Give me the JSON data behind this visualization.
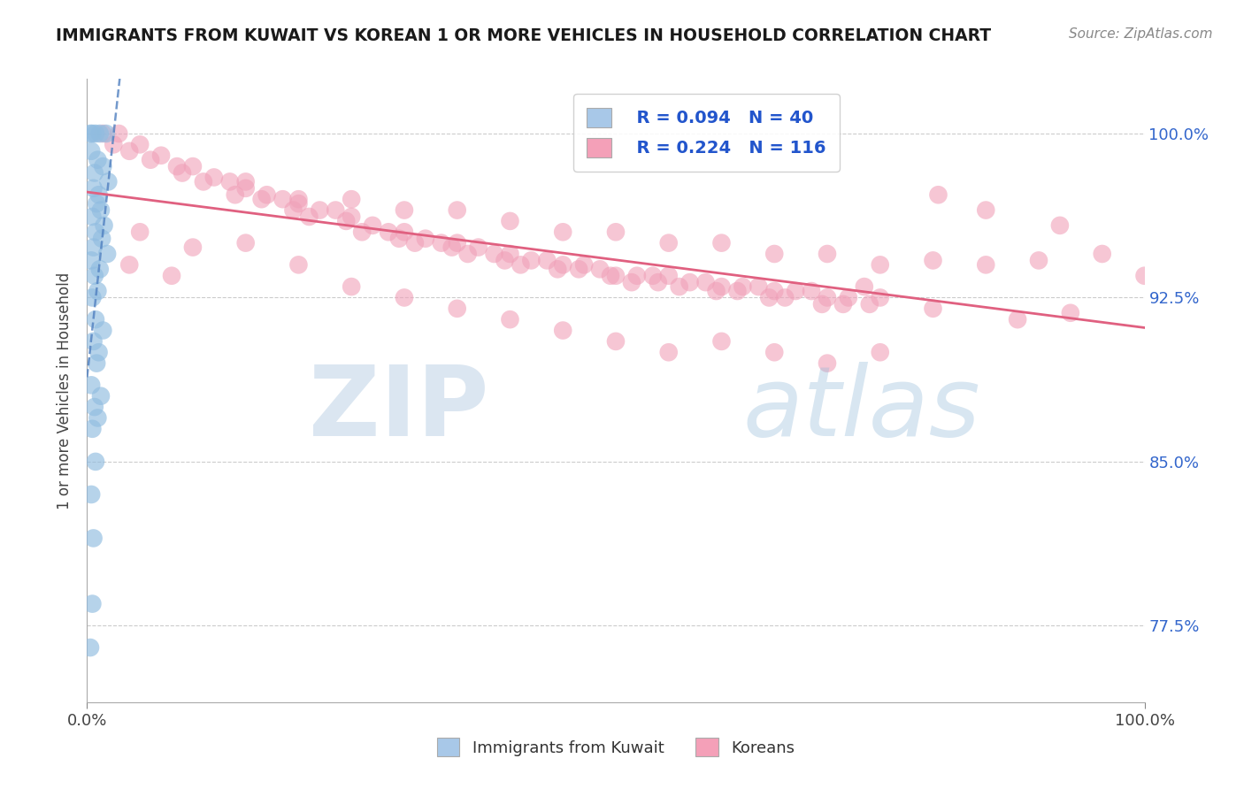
{
  "title": "IMMIGRANTS FROM KUWAIT VS KOREAN 1 OR MORE VEHICLES IN HOUSEHOLD CORRELATION CHART",
  "source_text": "Source: ZipAtlas.com",
  "ylabel": "1 or more Vehicles in Household",
  "xlim": [
    0.0,
    100.0
  ],
  "ylim": [
    74.0,
    102.5
  ],
  "yticks": [
    77.5,
    85.0,
    92.5,
    100.0
  ],
  "xticklabels": [
    "0.0%",
    "100.0%"
  ],
  "yticklabels_right": [
    "77.5%",
    "85.0%",
    "92.5%",
    "100.0%"
  ],
  "legend_entries": [
    {
      "label": "Immigrants from Kuwait",
      "color": "#a8c8e8",
      "R": 0.094,
      "N": 40
    },
    {
      "label": "Koreans",
      "color": "#f4a0b8",
      "R": 0.224,
      "N": 116
    }
  ],
  "watermark_zip": "ZIP",
  "watermark_atlas": "atlas",
  "watermark_color": "#c0d8f0",
  "kuwait_color": "#90bce0",
  "korean_color": "#f0a0b8",
  "kuwait_line_color": "#5080c0",
  "korean_line_color": "#e06080",
  "background_color": "#ffffff",
  "kuwait_points": [
    [
      0.3,
      100.0
    ],
    [
      0.8,
      100.0
    ],
    [
      1.2,
      100.0
    ],
    [
      1.8,
      100.0
    ],
    [
      0.5,
      100.0
    ],
    [
      0.4,
      99.2
    ],
    [
      1.0,
      98.8
    ],
    [
      1.5,
      98.5
    ],
    [
      0.7,
      98.2
    ],
    [
      2.0,
      97.8
    ],
    [
      0.6,
      97.5
    ],
    [
      1.1,
      97.2
    ],
    [
      0.9,
      96.8
    ],
    [
      1.3,
      96.5
    ],
    [
      0.5,
      96.2
    ],
    [
      1.6,
      95.8
    ],
    [
      0.8,
      95.5
    ],
    [
      1.4,
      95.2
    ],
    [
      0.6,
      94.8
    ],
    [
      1.9,
      94.5
    ],
    [
      0.4,
      94.2
    ],
    [
      1.2,
      93.8
    ],
    [
      0.7,
      93.5
    ],
    [
      1.0,
      92.8
    ],
    [
      0.5,
      92.5
    ],
    [
      0.8,
      91.5
    ],
    [
      1.5,
      91.0
    ],
    [
      0.6,
      90.5
    ],
    [
      1.1,
      90.0
    ],
    [
      0.9,
      89.5
    ],
    [
      0.4,
      88.5
    ],
    [
      1.3,
      88.0
    ],
    [
      0.7,
      87.5
    ],
    [
      1.0,
      87.0
    ],
    [
      0.5,
      86.5
    ],
    [
      0.8,
      85.0
    ],
    [
      0.4,
      83.5
    ],
    [
      0.6,
      81.5
    ],
    [
      0.5,
      78.5
    ],
    [
      0.3,
      76.5
    ]
  ],
  "korean_points": [
    [
      1.5,
      100.0
    ],
    [
      3.0,
      100.0
    ],
    [
      2.5,
      99.5
    ],
    [
      5.0,
      99.5
    ],
    [
      4.0,
      99.2
    ],
    [
      7.0,
      99.0
    ],
    [
      6.0,
      98.8
    ],
    [
      8.5,
      98.5
    ],
    [
      10.0,
      98.5
    ],
    [
      9.0,
      98.2
    ],
    [
      12.0,
      98.0
    ],
    [
      11.0,
      97.8
    ],
    [
      13.5,
      97.8
    ],
    [
      15.0,
      97.5
    ],
    [
      14.0,
      97.2
    ],
    [
      17.0,
      97.2
    ],
    [
      16.5,
      97.0
    ],
    [
      18.5,
      97.0
    ],
    [
      20.0,
      96.8
    ],
    [
      19.5,
      96.5
    ],
    [
      22.0,
      96.5
    ],
    [
      21.0,
      96.2
    ],
    [
      23.5,
      96.5
    ],
    [
      25.0,
      96.2
    ],
    [
      24.5,
      96.0
    ],
    [
      27.0,
      95.8
    ],
    [
      26.0,
      95.5
    ],
    [
      28.5,
      95.5
    ],
    [
      30.0,
      95.5
    ],
    [
      29.5,
      95.2
    ],
    [
      32.0,
      95.2
    ],
    [
      31.0,
      95.0
    ],
    [
      33.5,
      95.0
    ],
    [
      35.0,
      95.0
    ],
    [
      34.5,
      94.8
    ],
    [
      37.0,
      94.8
    ],
    [
      36.0,
      94.5
    ],
    [
      38.5,
      94.5
    ],
    [
      40.0,
      94.5
    ],
    [
      39.5,
      94.2
    ],
    [
      42.0,
      94.2
    ],
    [
      41.0,
      94.0
    ],
    [
      43.5,
      94.2
    ],
    [
      45.0,
      94.0
    ],
    [
      44.5,
      93.8
    ],
    [
      47.0,
      94.0
    ],
    [
      46.5,
      93.8
    ],
    [
      48.5,
      93.8
    ],
    [
      50.0,
      93.5
    ],
    [
      49.5,
      93.5
    ],
    [
      52.0,
      93.5
    ],
    [
      51.5,
      93.2
    ],
    [
      53.5,
      93.5
    ],
    [
      55.0,
      93.5
    ],
    [
      54.0,
      93.2
    ],
    [
      57.0,
      93.2
    ],
    [
      56.0,
      93.0
    ],
    [
      58.5,
      93.2
    ],
    [
      60.0,
      93.0
    ],
    [
      59.5,
      92.8
    ],
    [
      62.0,
      93.0
    ],
    [
      61.5,
      92.8
    ],
    [
      63.5,
      93.0
    ],
    [
      65.0,
      92.8
    ],
    [
      64.5,
      92.5
    ],
    [
      67.0,
      92.8
    ],
    [
      66.0,
      92.5
    ],
    [
      68.5,
      92.8
    ],
    [
      70.0,
      92.5
    ],
    [
      69.5,
      92.2
    ],
    [
      72.0,
      92.5
    ],
    [
      71.5,
      92.2
    ],
    [
      73.5,
      93.0
    ],
    [
      75.0,
      92.5
    ],
    [
      74.0,
      92.2
    ],
    [
      15.0,
      97.8
    ],
    [
      20.0,
      97.0
    ],
    [
      25.0,
      97.0
    ],
    [
      30.0,
      96.5
    ],
    [
      35.0,
      96.5
    ],
    [
      40.0,
      96.0
    ],
    [
      45.0,
      95.5
    ],
    [
      50.0,
      95.5
    ],
    [
      55.0,
      95.0
    ],
    [
      60.0,
      95.0
    ],
    [
      65.0,
      94.5
    ],
    [
      70.0,
      94.5
    ],
    [
      75.0,
      94.0
    ],
    [
      80.0,
      94.2
    ],
    [
      85.0,
      94.0
    ],
    [
      90.0,
      94.2
    ],
    [
      100.0,
      93.5
    ],
    [
      80.5,
      97.2
    ],
    [
      85.0,
      96.5
    ],
    [
      92.0,
      95.8
    ],
    [
      88.0,
      91.5
    ],
    [
      93.0,
      91.8
    ],
    [
      96.0,
      94.5
    ],
    [
      5.0,
      95.5
    ],
    [
      10.0,
      94.8
    ],
    [
      15.0,
      95.0
    ],
    [
      20.0,
      94.0
    ],
    [
      25.0,
      93.0
    ],
    [
      30.0,
      92.5
    ],
    [
      35.0,
      92.0
    ],
    [
      40.0,
      91.5
    ],
    [
      45.0,
      91.0
    ],
    [
      50.0,
      90.5
    ],
    [
      55.0,
      90.0
    ],
    [
      60.0,
      90.5
    ],
    [
      65.0,
      90.0
    ],
    [
      70.0,
      89.5
    ],
    [
      75.0,
      90.0
    ],
    [
      80.0,
      92.0
    ],
    [
      4.0,
      94.0
    ],
    [
      8.0,
      93.5
    ]
  ]
}
